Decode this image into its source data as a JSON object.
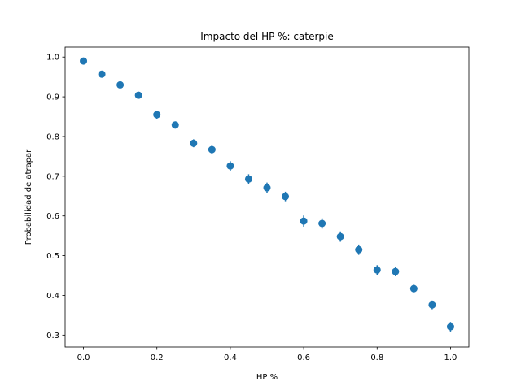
{
  "chart_data": {
    "type": "scatter",
    "title": "Impacto del HP %: caterpie",
    "xlabel": "HP %",
    "ylabel": "Probabilidad de atrapar",
    "xlim": [
      -0.05,
      1.05
    ],
    "ylim": [
      0.27,
      1.025
    ],
    "xticks": [
      0.0,
      0.2,
      0.4,
      0.6,
      0.8,
      1.0
    ],
    "xtick_labels": [
      "0.0",
      "0.2",
      "0.4",
      "0.6",
      "0.8",
      "1.0"
    ],
    "yticks": [
      0.3,
      0.4,
      0.5,
      0.6,
      0.7,
      0.8,
      0.9,
      1.0
    ],
    "ytick_labels": [
      "0.3",
      "0.4",
      "0.5",
      "0.6",
      "0.7",
      "0.8",
      "0.9",
      "1.0"
    ],
    "grid": false,
    "marker_color": "#1f77b4",
    "series": [
      {
        "x": [
          0.0,
          0.05,
          0.1,
          0.15,
          0.2,
          0.25,
          0.3,
          0.35,
          0.4,
          0.45,
          0.5,
          0.55,
          0.6,
          0.65,
          0.7,
          0.75,
          0.8,
          0.85,
          0.9,
          0.95,
          1.0
        ],
        "y": [
          0.99,
          0.957,
          0.93,
          0.904,
          0.855,
          0.829,
          0.783,
          0.767,
          0.726,
          0.693,
          0.671,
          0.649,
          0.587,
          0.581,
          0.548,
          0.515,
          0.464,
          0.46,
          0.417,
          0.376,
          0.321
        ],
        "err": [
          0.003,
          0.005,
          0.005,
          0.008,
          0.01,
          0.009,
          0.01,
          0.01,
          0.012,
          0.012,
          0.013,
          0.012,
          0.014,
          0.013,
          0.013,
          0.013,
          0.012,
          0.012,
          0.012,
          0.011,
          0.012
        ]
      }
    ]
  }
}
